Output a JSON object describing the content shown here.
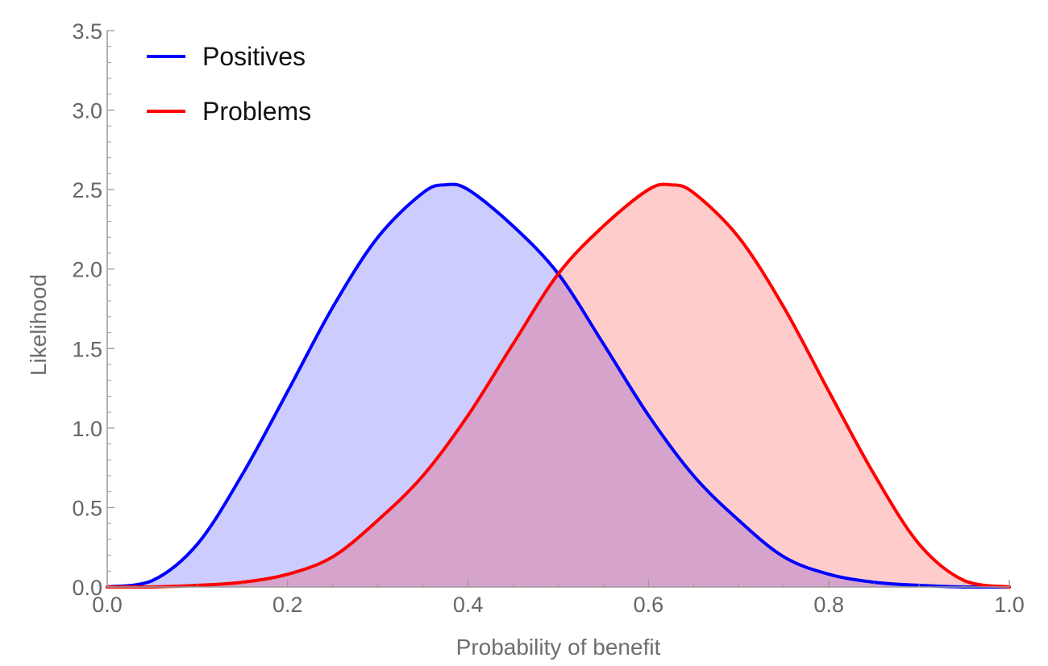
{
  "chart_data": {
    "type": "area",
    "title": "",
    "xlabel": "Probability of benefit",
    "ylabel": "Likelihood",
    "xlim": [
      0,
      1
    ],
    "ylim": [
      0,
      3.5
    ],
    "x_ticks": [
      {
        "value": 0.0,
        "label": "0.0"
      },
      {
        "value": 0.2,
        "label": "0.2"
      },
      {
        "value": 0.4,
        "label": "0.4"
      },
      {
        "value": 0.6,
        "label": "0.6"
      },
      {
        "value": 0.8,
        "label": "0.8"
      },
      {
        "value": 1.0,
        "label": "1.0"
      }
    ],
    "y_ticks": [
      {
        "value": 0.0,
        "label": "0.0"
      },
      {
        "value": 0.5,
        "label": "0.5"
      },
      {
        "value": 1.0,
        "label": "1.0"
      },
      {
        "value": 1.5,
        "label": "1.5"
      },
      {
        "value": 2.0,
        "label": "2.0"
      },
      {
        "value": 2.5,
        "label": "2.5"
      },
      {
        "value": 3.0,
        "label": "3.0"
      },
      {
        "value": 3.5,
        "label": "3.5"
      }
    ],
    "grid": false,
    "legend_position": "top-left",
    "series": [
      {
        "name": "Positives",
        "color": "#0000ff",
        "fill": "#ccccff",
        "x": [
          0.0,
          0.05,
          0.1,
          0.15,
          0.2,
          0.25,
          0.3,
          0.35,
          0.375,
          0.4,
          0.45,
          0.5,
          0.55,
          0.6,
          0.65,
          0.7,
          0.75,
          0.8,
          0.85,
          0.9,
          0.95,
          1.0
        ],
        "y": [
          0.0,
          0.04,
          0.27,
          0.71,
          1.23,
          1.76,
          2.2,
          2.48,
          2.53,
          2.5,
          2.27,
          1.97,
          1.53,
          1.08,
          0.7,
          0.42,
          0.19,
          0.08,
          0.03,
          0.01,
          0.0,
          0.0
        ]
      },
      {
        "name": "Problems",
        "color": "#ff0000",
        "fill": "#ffcccc",
        "x": [
          0.0,
          0.05,
          0.1,
          0.15,
          0.2,
          0.25,
          0.3,
          0.35,
          0.4,
          0.45,
          0.5,
          0.55,
          0.6,
          0.625,
          0.65,
          0.7,
          0.75,
          0.8,
          0.85,
          0.9,
          0.95,
          1.0
        ],
        "y": [
          0.0,
          0.0,
          0.01,
          0.03,
          0.08,
          0.19,
          0.42,
          0.7,
          1.08,
          1.53,
          1.97,
          2.27,
          2.5,
          2.53,
          2.48,
          2.2,
          1.76,
          1.23,
          0.71,
          0.27,
          0.04,
          0.0
        ]
      }
    ]
  }
}
